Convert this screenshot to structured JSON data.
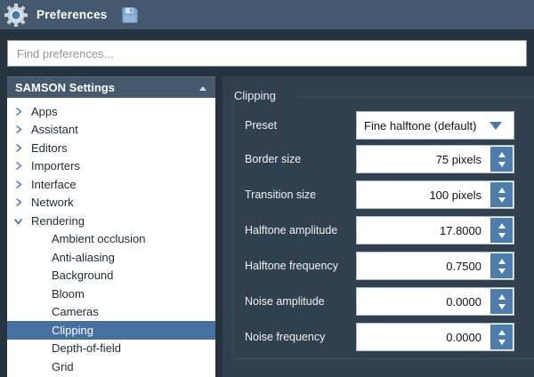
{
  "titlebar": {
    "title": "Preferences"
  },
  "search": {
    "placeholder": "Find preferences..."
  },
  "sidebar": {
    "header": "SAMSON Settings",
    "items": [
      {
        "label": "Apps",
        "level": 0,
        "chevron": "collapsed",
        "selected": false
      },
      {
        "label": "Assistant",
        "level": 0,
        "chevron": "collapsed",
        "selected": false
      },
      {
        "label": "Editors",
        "level": 0,
        "chevron": "collapsed",
        "selected": false
      },
      {
        "label": "Importers",
        "level": 0,
        "chevron": "collapsed",
        "selected": false
      },
      {
        "label": "Interface",
        "level": 0,
        "chevron": "collapsed",
        "selected": false
      },
      {
        "label": "Network",
        "level": 0,
        "chevron": "collapsed",
        "selected": false
      },
      {
        "label": "Rendering",
        "level": 0,
        "chevron": "expanded",
        "selected": false
      },
      {
        "label": "Ambient occlusion",
        "level": 1,
        "chevron": null,
        "selected": false
      },
      {
        "label": "Anti-aliasing",
        "level": 1,
        "chevron": null,
        "selected": false
      },
      {
        "label": "Background",
        "level": 1,
        "chevron": null,
        "selected": false
      },
      {
        "label": "Bloom",
        "level": 1,
        "chevron": null,
        "selected": false
      },
      {
        "label": "Cameras",
        "level": 1,
        "chevron": null,
        "selected": false
      },
      {
        "label": "Clipping",
        "level": 1,
        "chevron": null,
        "selected": true
      },
      {
        "label": "Depth-of-field",
        "level": 1,
        "chevron": null,
        "selected": false
      },
      {
        "label": "Grid",
        "level": 1,
        "chevron": null,
        "selected": false
      }
    ]
  },
  "panel": {
    "group_title": "Clipping",
    "rows": [
      {
        "label": "Preset",
        "value": "Fine halftone (default)",
        "control": "combo"
      },
      {
        "label": "Border size",
        "value": "75 pixels",
        "control": "spin"
      },
      {
        "label": "Transition size",
        "value": "100 pixels",
        "control": "spin"
      },
      {
        "label": "Halftone amplitude",
        "value": "17.8000",
        "control": "spin"
      },
      {
        "label": "Halftone frequency",
        "value": "0.7500",
        "control": "spin"
      },
      {
        "label": "Noise amplitude",
        "value": "0.0000",
        "control": "spin"
      },
      {
        "label": "Noise frequency",
        "value": "0.0000",
        "control": "spin"
      }
    ]
  },
  "icons": {
    "app": "gear-icon",
    "toolbar": "save-icon",
    "header_sort": "sort-up-icon",
    "tree_collapsed": "chevron-right-icon",
    "tree_expanded": "chevron-down-icon",
    "combo": "chevron-down-icon",
    "spin": [
      "spin-up-icon",
      "spin-down-icon"
    ]
  },
  "colors": {
    "titlebar_bg": "#45596e",
    "window_bg": "#27323f",
    "panel_bg": "#31404f",
    "sidebar_header_bg": "#46586b",
    "selection_bg": "#44719f",
    "chevron_blue": "#5585bb",
    "spin_button_blue": "#4d7dae",
    "combo_arrow_blue": "#4a77ad",
    "group_border": "#3e4e5f",
    "field_bg": "#ffffff"
  }
}
